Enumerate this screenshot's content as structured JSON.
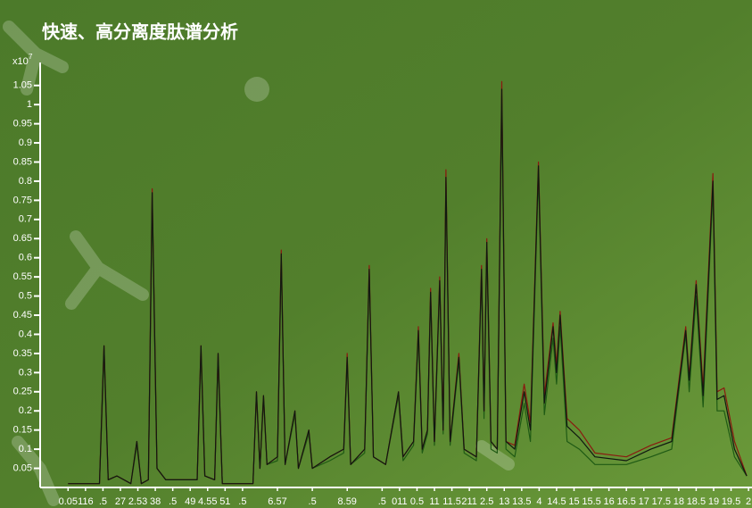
{
  "chart_data": {
    "type": "line",
    "title": "快速、高分离度肽谱分析",
    "y_multiplier": "x10",
    "y_multiplier_exp": "7",
    "xlim": [
      -0.3,
      20.1
    ],
    "ylim": [
      0,
      1.11
    ],
    "yticks": [
      0.05,
      0.1,
      0.15,
      0.2,
      0.25,
      0.3,
      0.35,
      0.4,
      0.45,
      0.5,
      0.55,
      0.6,
      0.65,
      0.7,
      0.75,
      0.8,
      0.85,
      0.9,
      0.95,
      1,
      1.05
    ],
    "xticks": [
      {
        "value": 0.5,
        "label": "0.05"
      },
      {
        "value": 1,
        "label": "116"
      },
      {
        "value": 1.5,
        "label": ".5"
      },
      {
        "value": 2,
        "label": "27"
      },
      {
        "value": 2.5,
        "label": "2.53"
      },
      {
        "value": 3,
        "label": "38"
      },
      {
        "value": 3.5,
        "label": ".5"
      },
      {
        "value": 4,
        "label": "49"
      },
      {
        "value": 4.5,
        "label": "4.55"
      },
      {
        "value": 5,
        "label": "51"
      },
      {
        "value": 5.5,
        "label": ".5"
      },
      {
        "value": 6.5,
        "label": "6.57"
      },
      {
        "value": 7.5,
        "label": ".5"
      },
      {
        "value": 8.5,
        "label": "8.59"
      },
      {
        "value": 9.5,
        "label": ".5"
      },
      {
        "value": 10,
        "label": "011"
      },
      {
        "value": 10.5,
        "label": "0.5"
      },
      {
        "value": 11,
        "label": "11"
      },
      {
        "value": 11.5,
        "label": "11.5"
      },
      {
        "value": 12,
        "label": "211"
      },
      {
        "value": 12.5,
        "label": "2.5"
      },
      {
        "value": 13,
        "label": "13"
      },
      {
        "value": 13.5,
        "label": "13.5"
      },
      {
        "value": 14,
        "label": "4"
      },
      {
        "value": 14.5,
        "label": "14.5"
      },
      {
        "value": 15,
        "label": "15"
      },
      {
        "value": 15.5,
        "label": "15.5"
      },
      {
        "value": 16,
        "label": "16"
      },
      {
        "value": 16.5,
        "label": "16.5"
      },
      {
        "value": 17,
        "label": "17"
      },
      {
        "value": 17.5,
        "label": "17.5"
      },
      {
        "value": 18,
        "label": "18"
      },
      {
        "value": 18.5,
        "label": "18.5"
      },
      {
        "value": 19,
        "label": "19"
      },
      {
        "value": 19.5,
        "label": "19.5"
      },
      {
        "value": 20,
        "label": "2"
      }
    ],
    "x": [
      0.5,
      1.4,
      1.53,
      1.65,
      1.9,
      2.3,
      2.47,
      2.6,
      2.8,
      2.91,
      3.05,
      3.3,
      4.2,
      4.31,
      4.42,
      4.7,
      4.8,
      4.92,
      5.8,
      5.9,
      6.0,
      6.1,
      6.2,
      6.5,
      6.61,
      6.72,
      7.0,
      7.1,
      7.4,
      7.5,
      8.0,
      8.4,
      8.5,
      8.6,
      9.0,
      9.13,
      9.25,
      9.6,
      9.97,
      10.1,
      10.4,
      10.54,
      10.65,
      10.8,
      10.89,
      11.0,
      11.15,
      11.25,
      11.33,
      11.45,
      11.7,
      11.85,
      12.2,
      12.35,
      12.42,
      12.5,
      12.62,
      12.8,
      12.93,
      13.05,
      13.3,
      13.57,
      13.75,
      13.98,
      14.15,
      14.4,
      14.5,
      14.6,
      14.8,
      15.15,
      15.6,
      16.5,
      17.2,
      17.8,
      18.2,
      18.3,
      18.5,
      18.7,
      18.98,
      19.1,
      19.3,
      19.6,
      19.95
    ],
    "series": [
      {
        "color": "#1f5a14",
        "values": [
          0.01,
          0.01,
          0.35,
          0.02,
          0.03,
          0.01,
          0.11,
          0.01,
          0.02,
          0.74,
          0.05,
          0.02,
          0.02,
          0.35,
          0.03,
          0.02,
          0.33,
          0.01,
          0.01,
          0.24,
          0.05,
          0.23,
          0.06,
          0.07,
          0.6,
          0.06,
          0.19,
          0.05,
          0.14,
          0.05,
          0.07,
          0.09,
          0.33,
          0.06,
          0.09,
          0.56,
          0.08,
          0.06,
          0.24,
          0.07,
          0.11,
          0.4,
          0.09,
          0.14,
          0.5,
          0.11,
          0.53,
          0.14,
          0.8,
          0.11,
          0.33,
          0.09,
          0.07,
          0.56,
          0.18,
          0.62,
          0.1,
          0.09,
          1.02,
          0.1,
          0.08,
          0.22,
          0.12,
          0.82,
          0.19,
          0.39,
          0.27,
          0.42,
          0.12,
          0.1,
          0.06,
          0.06,
          0.08,
          0.1,
          0.4,
          0.25,
          0.5,
          0.21,
          0.78,
          0.2,
          0.2,
          0.08,
          0.03
        ]
      },
      {
        "color": "#8a1a10",
        "values": [
          0.01,
          0.01,
          0.37,
          0.02,
          0.03,
          0.01,
          0.12,
          0.01,
          0.02,
          0.78,
          0.05,
          0.02,
          0.02,
          0.37,
          0.03,
          0.02,
          0.35,
          0.01,
          0.01,
          0.25,
          0.05,
          0.24,
          0.06,
          0.08,
          0.62,
          0.06,
          0.2,
          0.05,
          0.15,
          0.05,
          0.08,
          0.1,
          0.35,
          0.06,
          0.1,
          0.58,
          0.08,
          0.06,
          0.25,
          0.08,
          0.12,
          0.42,
          0.1,
          0.15,
          0.52,
          0.12,
          0.55,
          0.15,
          0.83,
          0.12,
          0.35,
          0.1,
          0.08,
          0.58,
          0.2,
          0.65,
          0.12,
          0.1,
          1.06,
          0.12,
          0.11,
          0.27,
          0.17,
          0.85,
          0.24,
          0.43,
          0.32,
          0.46,
          0.18,
          0.15,
          0.09,
          0.08,
          0.11,
          0.13,
          0.42,
          0.29,
          0.54,
          0.26,
          0.82,
          0.25,
          0.26,
          0.12,
          0.03
        ]
      },
      {
        "color": "#101810",
        "values": [
          0.01,
          0.01,
          0.37,
          0.02,
          0.03,
          0.01,
          0.12,
          0.01,
          0.02,
          0.77,
          0.05,
          0.02,
          0.02,
          0.37,
          0.03,
          0.02,
          0.35,
          0.01,
          0.01,
          0.25,
          0.05,
          0.24,
          0.06,
          0.08,
          0.61,
          0.06,
          0.2,
          0.05,
          0.15,
          0.05,
          0.08,
          0.1,
          0.34,
          0.06,
          0.1,
          0.57,
          0.08,
          0.06,
          0.25,
          0.08,
          0.12,
          0.41,
          0.1,
          0.15,
          0.51,
          0.12,
          0.54,
          0.15,
          0.81,
          0.12,
          0.34,
          0.1,
          0.08,
          0.57,
          0.2,
          0.64,
          0.12,
          0.1,
          1.04,
          0.12,
          0.1,
          0.25,
          0.15,
          0.84,
          0.22,
          0.42,
          0.3,
          0.45,
          0.16,
          0.13,
          0.08,
          0.07,
          0.1,
          0.12,
          0.41,
          0.28,
          0.53,
          0.24,
          0.8,
          0.23,
          0.24,
          0.1,
          0.03
        ]
      }
    ]
  }
}
